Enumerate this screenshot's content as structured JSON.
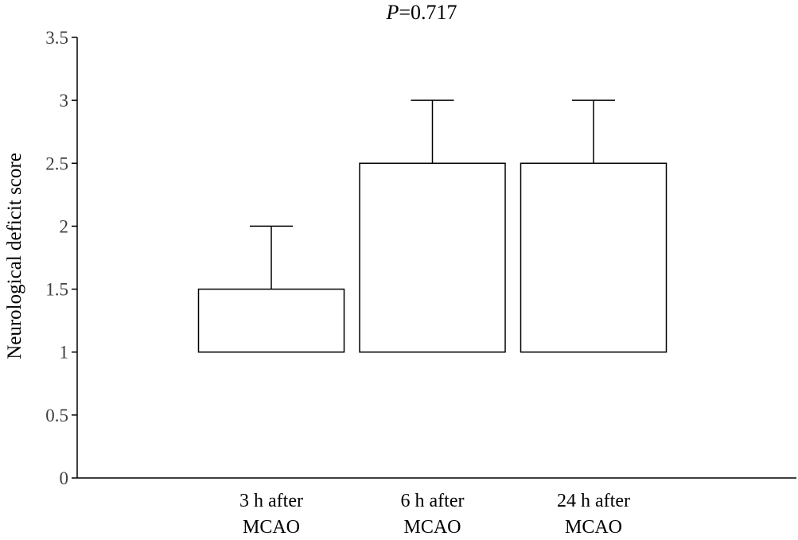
{
  "chart_data": {
    "type": "bar",
    "title": {
      "italic_part": "P",
      "rest": "=0.717"
    },
    "xlabel": "",
    "ylabel": "Neurological deficit score",
    "categories": [
      [
        "3 h after",
        "MCAO"
      ],
      [
        "6 h after",
        "MCAO"
      ],
      [
        "24 h after",
        "MCAO"
      ]
    ],
    "bar_base": 1,
    "values": [
      1.5,
      2.5,
      2.5
    ],
    "error_upper": [
      2.0,
      3.0,
      3.0
    ],
    "ylim": [
      0,
      3.5
    ],
    "yticks": [
      0,
      0.5,
      1,
      1.5,
      2,
      2.5,
      3,
      3.5
    ],
    "ytick_labels": [
      "0",
      "0.5",
      "1",
      "1.5",
      "2",
      "2.5",
      "3",
      "3.5"
    ],
    "grid": false,
    "legend": "none",
    "bar_fill": "#ffffff",
    "bar_stroke": "#000000",
    "axis_color": "#000000"
  }
}
